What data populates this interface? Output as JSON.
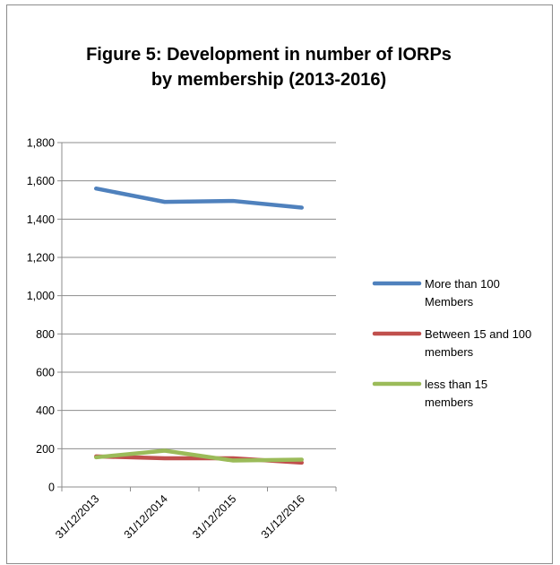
{
  "chart_data": {
    "type": "line",
    "title_lines": [
      "Figure 5: Development in number of IORPs",
      "by membership (2013-2016)"
    ],
    "categories": [
      "31/12/2013",
      "31/12/2014",
      "31/12/2015",
      "31/12/2016"
    ],
    "ylim": [
      0,
      1800
    ],
    "yticks": [
      0,
      200,
      400,
      600,
      800,
      1000,
      1200,
      1400,
      1600,
      1800
    ],
    "ytick_labels": [
      "0",
      "200",
      "400",
      "600",
      "800",
      "1,000",
      "1,200",
      "1,400",
      "1,600",
      "1,800"
    ],
    "grid": "horizontal",
    "legend_position": "right",
    "series": [
      {
        "name": "More than 100 Members",
        "legend_lines": [
          "More than 100",
          "Members"
        ],
        "color": "#4F81BD",
        "values": [
          1560,
          1490,
          1495,
          1460
        ]
      },
      {
        "name": "Between 15 and 100 members",
        "legend_lines": [
          "Between 15 and 100",
          "members"
        ],
        "color": "#C0504D",
        "values": [
          160,
          150,
          150,
          127
        ]
      },
      {
        "name": "less than 15 members",
        "legend_lines": [
          "less than 15",
          "members"
        ],
        "color": "#9BBB59",
        "values": [
          155,
          190,
          138,
          143
        ]
      }
    ]
  }
}
